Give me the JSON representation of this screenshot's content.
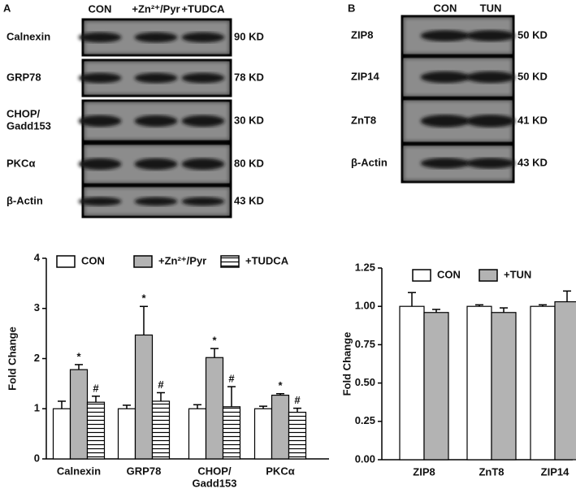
{
  "panel_a": {
    "label": "A",
    "lanes": [
      "CON",
      "+Zn²⁺/Pyr",
      "+TUDCA"
    ],
    "rows": [
      {
        "name": "Calnexin",
        "size": "90 KD"
      },
      {
        "name": "GRP78",
        "size": "78 KD"
      },
      {
        "name": "CHOP/\nGadd153",
        "size": "30 KD"
      },
      {
        "name": "PKCα",
        "size": "80 KD"
      },
      {
        "name": "β-Actin",
        "size": "43 KD"
      }
    ]
  },
  "panel_b": {
    "label": "B",
    "lanes": [
      "CON",
      "TUN"
    ],
    "rows": [
      {
        "name": "ZIP8",
        "size": "50 KD"
      },
      {
        "name": "ZIP14",
        "size": "50 KD"
      },
      {
        "name": "ZnT8",
        "size": "41 KD"
      },
      {
        "name": "β-Actin",
        "size": "43 KD"
      }
    ]
  },
  "chart_data": [
    {
      "type": "bar",
      "y_label": "Fold Change",
      "categories": [
        "Calnexin",
        "GRP78",
        "CHOP/\nGadd153",
        "PKCα"
      ],
      "ylim": [
        0,
        4
      ],
      "yticks": [
        0,
        1,
        2,
        3,
        4
      ],
      "series": [
        {
          "name": "CON",
          "color": "#ffffff",
          "values": [
            1.0,
            1.0,
            1.0,
            1.0
          ],
          "errors": [
            0.15,
            0.07,
            0.08,
            0.05
          ]
        },
        {
          "name": "+Zn²⁺/Pyr",
          "color": "#b3b3b3",
          "values": [
            1.78,
            2.47,
            2.02,
            1.27
          ],
          "errors": [
            0.1,
            0.57,
            0.18,
            0.03
          ],
          "annotations": [
            "*",
            "*",
            "*",
            "*"
          ]
        },
        {
          "name": "+TUDCA",
          "color": "#ffffff",
          "hatch": "horizontal",
          "values": [
            1.13,
            1.15,
            1.04,
            0.93
          ],
          "errors": [
            0.12,
            0.17,
            0.4,
            0.08
          ],
          "annotations": [
            "#",
            "#",
            "#",
            "#"
          ]
        }
      ]
    },
    {
      "type": "bar",
      "y_label": "Fold Change",
      "categories": [
        "ZIP8",
        "ZnT8",
        "ZIP14"
      ],
      "ylim": [
        0,
        1.25
      ],
      "yticks": [
        {
          "value": 0,
          "label": "0.00"
        },
        {
          "value": 0.25,
          "label": "0.25"
        },
        {
          "value": 0.5,
          "label": "0.50"
        },
        {
          "value": 0.75,
          "label": "0.75"
        },
        {
          "value": 1,
          "label": "1.00"
        },
        {
          "value": 1.25,
          "label": "1.25"
        }
      ],
      "series": [
        {
          "name": "CON",
          "color": "#ffffff",
          "values": [
            1.0,
            1.0,
            1.0
          ],
          "errors": [
            0.09,
            0.01,
            0.01
          ]
        },
        {
          "name": "+TUN",
          "color": "#b3b3b3",
          "values": [
            0.96,
            0.96,
            1.03
          ],
          "errors": [
            0.02,
            0.03,
            0.07
          ]
        }
      ]
    }
  ]
}
